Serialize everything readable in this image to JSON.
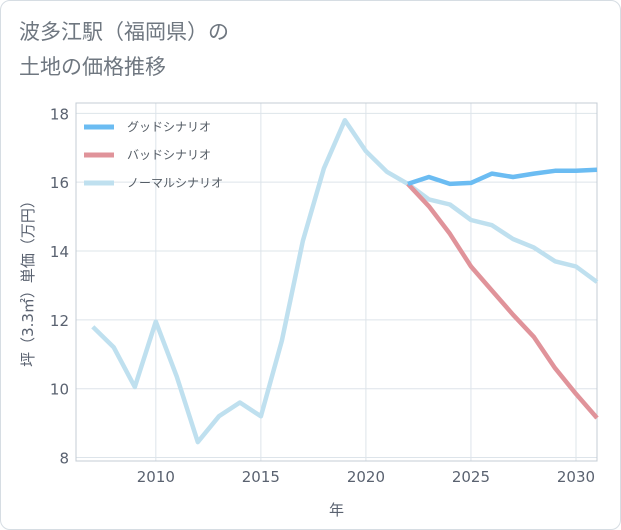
{
  "title": "波多江駅（福岡県）の\n土地の価格推移",
  "chart_data": {
    "type": "line",
    "xlabel": "年",
    "ylabel": "坪（3.3㎡）単価（万円）",
    "xlim": [
      2006.2,
      2031
    ],
    "ylim": [
      7.9,
      18.3
    ],
    "xticks": [
      2010,
      2015,
      2020,
      2025,
      2030
    ],
    "yticks": [
      8,
      10,
      12,
      14,
      16,
      18
    ],
    "grid": true,
    "legend_position": "top-left",
    "series": [
      {
        "name": "グッドシナリオ",
        "color": "#6bbcf2",
        "x": [
          2022,
          2023,
          2024,
          2025,
          2026,
          2027,
          2028,
          2029,
          2030,
          2031
        ],
        "values": [
          15.95,
          16.15,
          15.95,
          15.98,
          16.25,
          16.15,
          16.25,
          16.33,
          16.33,
          16.36
        ]
      },
      {
        "name": "バッドシナリオ",
        "color": "#e0939a",
        "x": [
          2022,
          2023,
          2024,
          2025,
          2026,
          2027,
          2028,
          2029,
          2030,
          2031
        ],
        "values": [
          15.95,
          15.3,
          14.5,
          13.55,
          12.85,
          12.15,
          11.5,
          10.6,
          9.85,
          9.15
        ]
      },
      {
        "name": "ノーマルシナリオ",
        "color": "#bfe0ef",
        "x": [
          2007,
          2008,
          2009,
          2010,
          2011,
          2012,
          2013,
          2014,
          2015,
          2016,
          2017,
          2018,
          2019,
          2020,
          2021,
          2022,
          2023,
          2024,
          2025,
          2026,
          2027,
          2028,
          2029,
          2030,
          2031
        ],
        "values": [
          11.8,
          11.2,
          10.05,
          11.95,
          10.35,
          8.45,
          9.2,
          9.6,
          9.2,
          11.4,
          14.3,
          16.4,
          17.8,
          16.9,
          16.3,
          15.95,
          15.5,
          15.35,
          14.9,
          14.75,
          14.35,
          14.1,
          13.7,
          13.55,
          13.1
        ]
      }
    ]
  }
}
